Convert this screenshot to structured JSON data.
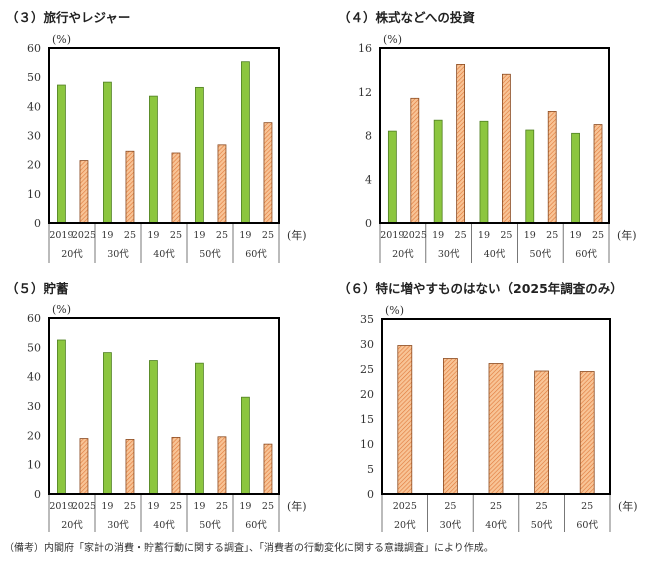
{
  "colors": {
    "y2019": "#8cc63f",
    "y2019_border": "#4f7f22",
    "y2025": "#f8c496",
    "y2025_hatch": "#e0783a",
    "y2025_border": "#8a4a20"
  },
  "chart_data": [
    {
      "type": "bar",
      "title": "（３）旅行やレジャー",
      "ylabel": "(%)",
      "xunit": "(年)",
      "ylim": [
        0,
        60
      ],
      "yticks": [
        "0",
        "10",
        "20",
        "30",
        "40",
        "50",
        "60"
      ],
      "groups": [
        "20代",
        "30代",
        "40代",
        "50代",
        "60代"
      ],
      "year_labels": [
        [
          "2019",
          "2025"
        ],
        [
          "19",
          "25"
        ],
        [
          "19",
          "25"
        ],
        [
          "19",
          "25"
        ],
        [
          "19",
          "25"
        ]
      ],
      "series": [
        {
          "year": "2019",
          "values": [
            47.3,
            48.3,
            43.5,
            46.5,
            55.3
          ]
        },
        {
          "year": "2025",
          "values": [
            21.4,
            24.6,
            24.0,
            26.8,
            34.4
          ]
        }
      ],
      "grid": false
    },
    {
      "type": "bar",
      "title": "（４）株式などへの投資",
      "ylabel": "(%)",
      "xunit": "(年)",
      "ylim": [
        0,
        16
      ],
      "yticks": [
        "0",
        "4",
        "8",
        "12",
        "16"
      ],
      "groups": [
        "20代",
        "30代",
        "40代",
        "50代",
        "60代"
      ],
      "year_labels": [
        [
          "2019",
          "2025"
        ],
        [
          "19",
          "25"
        ],
        [
          "19",
          "25"
        ],
        [
          "19",
          "25"
        ],
        [
          "19",
          "25"
        ]
      ],
      "series": [
        {
          "year": "2019",
          "values": [
            8.4,
            9.4,
            9.3,
            8.5,
            8.2
          ]
        },
        {
          "year": "2025",
          "values": [
            11.4,
            14.5,
            13.6,
            10.2,
            9.0
          ]
        }
      ],
      "grid": false
    },
    {
      "type": "bar",
      "title": "（５）貯蓄",
      "ylabel": "(%)",
      "xunit": "(年)",
      "ylim": [
        0,
        60
      ],
      "yticks": [
        "0",
        "10",
        "20",
        "30",
        "40",
        "50",
        "60"
      ],
      "groups": [
        "20代",
        "30代",
        "40代",
        "50代",
        "60代"
      ],
      "year_labels": [
        [
          "2019",
          "2025"
        ],
        [
          "19",
          "25"
        ],
        [
          "19",
          "25"
        ],
        [
          "19",
          "25"
        ],
        [
          "19",
          "25"
        ]
      ],
      "series": [
        {
          "year": "2019",
          "values": [
            52.5,
            48.2,
            45.5,
            44.6,
            33.0
          ]
        },
        {
          "year": "2025",
          "values": [
            18.9,
            18.6,
            19.3,
            19.5,
            17.0
          ]
        }
      ],
      "grid": false
    },
    {
      "type": "bar",
      "title": "（６）特に増やすものはない（2025年調査のみ）",
      "ylabel": "(%)",
      "xunit": "(年)",
      "ylim": [
        0,
        35
      ],
      "yticks": [
        "0",
        "5",
        "10",
        "15",
        "20",
        "25",
        "30",
        "35"
      ],
      "groups": [
        "20代",
        "30代",
        "40代",
        "50代",
        "60代"
      ],
      "year_labels": [
        [
          "2025"
        ],
        [
          "25"
        ],
        [
          "25"
        ],
        [
          "25"
        ],
        [
          "25"
        ]
      ],
      "series": [
        {
          "year": "2025",
          "values": [
            29.7,
            27.1,
            26.1,
            24.6,
            24.5
          ]
        }
      ],
      "grid": false
    }
  ],
  "footnote": "（備考）内閣府「家計の消費・貯蓄行動に関する調査」、「消費者の行動変化に関する意識調査」により作成。"
}
